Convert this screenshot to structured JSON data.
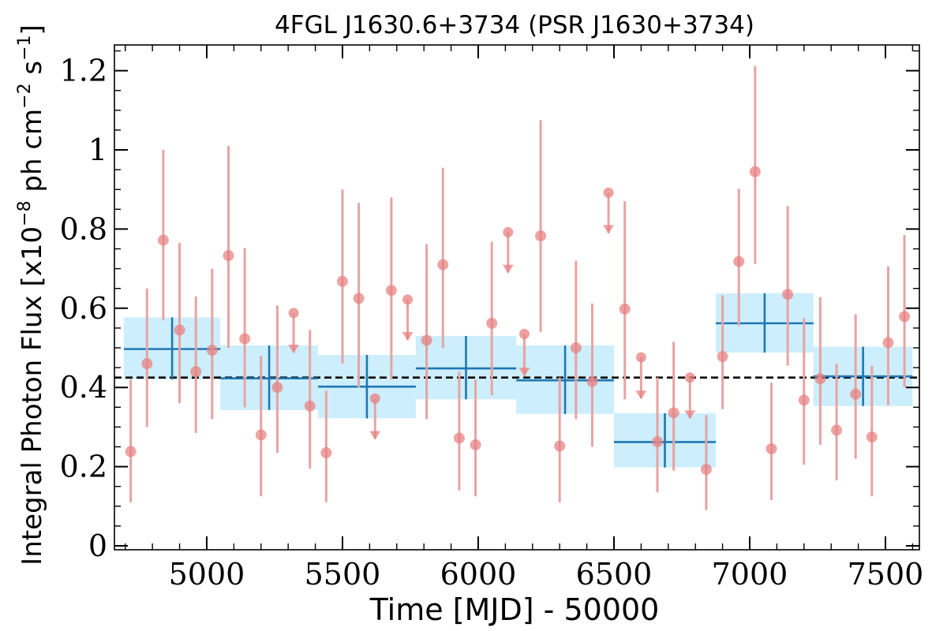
{
  "chart_data": {
    "type": "scatter",
    "title": "4FGL J1630.6+3734 (PSR J1630+3734)",
    "xlabel": "Time [MJD] - 50000",
    "ylabel_parts": {
      "prefix": "Integral Photon Flux [x10",
      "exp1": "−8",
      "mid": " ph cm",
      "exp2": "−2",
      "mid2": " s",
      "exp3": "−1",
      "suffix": "]"
    },
    "xlim": [
      4660,
      7625
    ],
    "ylim": [
      -0.01,
      1.265
    ],
    "xticks": [
      {
        "value": 5000,
        "label": "5000"
      },
      {
        "value": 5500,
        "label": "5500"
      },
      {
        "value": 6000,
        "label": "6000"
      },
      {
        "value": 6500,
        "label": "6500"
      },
      {
        "value": 7000,
        "label": "7000"
      },
      {
        "value": 7500,
        "label": "7500"
      }
    ],
    "yticks": [
      {
        "value": 0,
        "label": "0"
      },
      {
        "value": 0.2,
        "label": "0.2"
      },
      {
        "value": 0.4,
        "label": "0.4"
      },
      {
        "value": 0.6,
        "label": "0.6"
      },
      {
        "value": 0.8,
        "label": "0.8"
      },
      {
        "value": 1.0,
        "label": "1"
      },
      {
        "value": 1.2,
        "label": "1.2"
      }
    ],
    "x_minor_step": 100,
    "y_minor_step": 0.05,
    "average_flux": 0.425,
    "colors": {
      "points": "#e88080",
      "errorbars": "#e7a3a3",
      "bins_fill": "#cdeefc",
      "bins_line": "#1f77b4",
      "average_line": "#000000"
    },
    "coarse_bins": [
      {
        "x0": 4695,
        "x1": 5050,
        "y": 0.497,
        "lo": 0.42,
        "hi": 0.577
      },
      {
        "x0": 5050,
        "x1": 5410,
        "y": 0.423,
        "lo": 0.343,
        "hi": 0.506
      },
      {
        "x0": 5410,
        "x1": 5770,
        "y": 0.402,
        "lo": 0.322,
        "hi": 0.482
      },
      {
        "x0": 5770,
        "x1": 6140,
        "y": 0.448,
        "lo": 0.37,
        "hi": 0.53
      },
      {
        "x0": 6140,
        "x1": 6500,
        "y": 0.418,
        "lo": 0.333,
        "hi": 0.506
      },
      {
        "x0": 6500,
        "x1": 6875,
        "y": 0.262,
        "lo": 0.198,
        "hi": 0.335
      },
      {
        "x0": 6875,
        "x1": 7235,
        "y": 0.562,
        "lo": 0.488,
        "hi": 0.638
      },
      {
        "x0": 7235,
        "x1": 7600,
        "y": 0.428,
        "lo": 0.353,
        "hi": 0.503
      }
    ],
    "points": [
      {
        "x": 4720,
        "y": 0.238,
        "lo": 0.11,
        "hi": 0.42
      },
      {
        "x": 4780,
        "y": 0.46,
        "lo": 0.3,
        "hi": 0.65
      },
      {
        "x": 4840,
        "y": 0.772,
        "lo": 0.57,
        "hi": 1.0
      },
      {
        "x": 4900,
        "y": 0.545,
        "lo": 0.36,
        "hi": 0.765
      },
      {
        "x": 4960,
        "y": 0.44,
        "lo": 0.285,
        "hi": 0.63
      },
      {
        "x": 5020,
        "y": 0.494,
        "lo": 0.32,
        "hi": 0.7
      },
      {
        "x": 5080,
        "y": 0.733,
        "lo": 0.5,
        "hi": 1.01
      },
      {
        "x": 5140,
        "y": 0.523,
        "lo": 0.35,
        "hi": 0.752
      },
      {
        "x": 5200,
        "y": 0.28,
        "lo": 0.125,
        "hi": 0.48
      },
      {
        "x": 5260,
        "y": 0.4,
        "lo": 0.235,
        "hi": 0.607
      },
      {
        "x": 5320,
        "y": 0.588,
        "upper_limit": true,
        "arrow_y": 0.488
      },
      {
        "x": 5380,
        "y": 0.353,
        "lo": 0.195,
        "hi": 0.545
      },
      {
        "x": 5440,
        "y": 0.235,
        "lo": 0.11,
        "hi": 0.392
      },
      {
        "x": 5500,
        "y": 0.668,
        "lo": 0.46,
        "hi": 0.9
      },
      {
        "x": 5560,
        "y": 0.625,
        "lo": 0.4,
        "hi": 0.866
      },
      {
        "x": 5620,
        "y": 0.372,
        "upper_limit": true,
        "arrow_y": 0.27
      },
      {
        "x": 5680,
        "y": 0.645,
        "lo": 0.42,
        "hi": 0.88
      },
      {
        "x": 5740,
        "y": 0.622,
        "upper_limit": true,
        "arrow_y": 0.52
      },
      {
        "x": 5810,
        "y": 0.519,
        "lo": 0.32,
        "hi": 0.762
      },
      {
        "x": 5870,
        "y": 0.71,
        "lo": 0.5,
        "hi": 0.955
      },
      {
        "x": 5930,
        "y": 0.272,
        "lo": 0.14,
        "hi": 0.44
      },
      {
        "x": 5990,
        "y": 0.255,
        "lo": 0.125,
        "hi": 0.42
      },
      {
        "x": 6050,
        "y": 0.562,
        "lo": 0.38,
        "hi": 0.768
      },
      {
        "x": 6110,
        "y": 0.792,
        "upper_limit": true,
        "arrow_y": 0.69
      },
      {
        "x": 6170,
        "y": 0.535,
        "upper_limit": true,
        "arrow_y": 0.43
      },
      {
        "x": 6230,
        "y": 0.783,
        "lo": 0.54,
        "hi": 1.075
      },
      {
        "x": 6300,
        "y": 0.252,
        "lo": 0.11,
        "hi": 0.425
      },
      {
        "x": 6360,
        "y": 0.5,
        "lo": 0.32,
        "hi": 0.72
      },
      {
        "x": 6420,
        "y": 0.415,
        "lo": 0.25,
        "hi": 0.612
      },
      {
        "x": 6480,
        "y": 0.892,
        "upper_limit": true,
        "arrow_y": 0.79
      },
      {
        "x": 6540,
        "y": 0.598,
        "lo": 0.37,
        "hi": 0.87
      },
      {
        "x": 6600,
        "y": 0.476,
        "upper_limit": true,
        "arrow_y": 0.372
      },
      {
        "x": 6660,
        "y": 0.263,
        "lo": 0.135,
        "hi": 0.425
      },
      {
        "x": 6720,
        "y": 0.336,
        "lo": 0.19,
        "hi": 0.515
      },
      {
        "x": 6780,
        "y": 0.425,
        "upper_limit": true,
        "arrow_y": 0.322
      },
      {
        "x": 6840,
        "y": 0.193,
        "lo": 0.09,
        "hi": 0.33
      },
      {
        "x": 6900,
        "y": 0.478,
        "lo": 0.345,
        "hi": 0.633
      },
      {
        "x": 6960,
        "y": 0.718,
        "lo": 0.555,
        "hi": 0.902
      },
      {
        "x": 7020,
        "y": 0.945,
        "lo": 0.712,
        "hi": 1.212
      },
      {
        "x": 7080,
        "y": 0.245,
        "lo": 0.115,
        "hi": 0.412
      },
      {
        "x": 7140,
        "y": 0.635,
        "lo": 0.455,
        "hi": 0.858
      },
      {
        "x": 7200,
        "y": 0.368,
        "lo": 0.205,
        "hi": 0.575
      },
      {
        "x": 7260,
        "y": 0.422,
        "lo": 0.255,
        "hi": 0.628
      },
      {
        "x": 7320,
        "y": 0.292,
        "lo": 0.165,
        "hi": 0.46
      },
      {
        "x": 7390,
        "y": 0.383,
        "lo": 0.22,
        "hi": 0.585
      },
      {
        "x": 7450,
        "y": 0.275,
        "lo": 0.125,
        "hi": 0.455
      },
      {
        "x": 7510,
        "y": 0.513,
        "lo": 0.355,
        "hi": 0.706
      },
      {
        "x": 7570,
        "y": 0.579,
        "lo": 0.4,
        "hi": 0.785
      }
    ]
  }
}
